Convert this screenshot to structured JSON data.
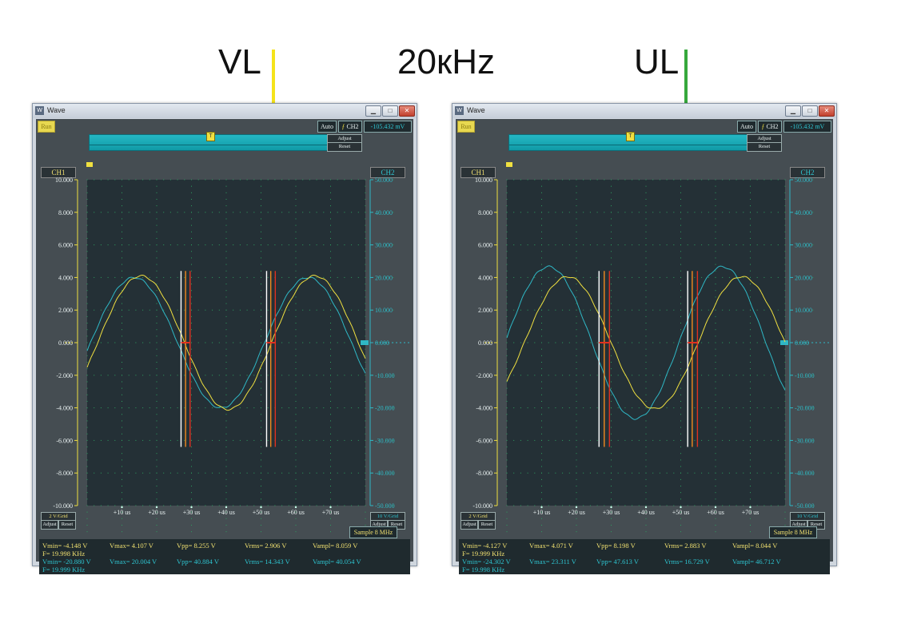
{
  "labels": {
    "vl": "VL",
    "freq": "20кHz",
    "ul": "UL"
  },
  "colors": {
    "ch1": "#f0e040",
    "ch2": "#2fb8c6",
    "plot_bg": "#243036",
    "panel": "#454d52",
    "cursor_white": "#ffffff",
    "cursor_red": "#e03020",
    "cursor_orange": "#f08a20",
    "vl_marker": "#f5e31a",
    "ul_marker": "#36a83c"
  },
  "common": {
    "window_title": "Wave",
    "run_button": "Run",
    "auto_button": "Auto",
    "trigger_channel": "CH2",
    "trigger_edge_icon": "rising-edge-icon",
    "trigger_level": "-105.432 mV",
    "adjust": "Adjust",
    "reset": "Reset",
    "ch1_label": "CH1",
    "ch2_label": "CH2",
    "ch1_scale": "2 V/Grid",
    "ch2_scale": "10 V/Grid",
    "sample": "Sample 8 MHz",
    "ch1_ticks": [
      "10.000",
      "8.000",
      "6.000",
      "4.000",
      "2.000",
      "0.000",
      "-2.000",
      "-4.000",
      "-6.000",
      "-8.000",
      "-10.000"
    ],
    "ch2_ticks": [
      "50.000",
      "40.000",
      "30.000",
      "20.000",
      "10.000",
      "0.000",
      "-10.000",
      "-20.000",
      "-30.000",
      "-40.000",
      "-50.000"
    ],
    "time_ticks": [
      "+10 us",
      "+20 us",
      "+30 us",
      "+40 us",
      "+50 us",
      "+60 us",
      "+70 us"
    ]
  },
  "scopes": [
    {
      "ch1_wave": {
        "amplitude_v": 4.1,
        "peak_time_us": 15.5,
        "period_us": 50
      },
      "ch2_wave": {
        "amplitude_v": 20.0,
        "peak_time_us": 13.5,
        "period_us": 50
      },
      "cursors_us": [
        {
          "color": "white",
          "t": 27
        },
        {
          "color": "orange",
          "t": 28.3
        },
        {
          "color": "red",
          "t": 29.6
        },
        {
          "color": "white",
          "t": 51.6
        },
        {
          "color": "orange",
          "t": 52.8
        },
        {
          "color": "red",
          "t": 54.1
        }
      ],
      "ch1_readout": {
        "vmin": "Vmin= -4.148 V",
        "f": "F= 19.998 KHz",
        "vmax": "Vmax= 4.107 V",
        "vpp": "Vpp= 8.255 V",
        "vrms": "Vrms= 2.906 V",
        "vampl": "Vampl= 8.059 V"
      },
      "ch2_readout": {
        "vmin": "Vmin= -20.880 V",
        "f": "F= 19.999 KHz",
        "vmax": "Vmax= 20.004 V",
        "vpp": "Vpp= 40.884 V",
        "vrms": "Vrms= 14.343 V",
        "vampl": "Vampl= 40.054 V"
      }
    },
    {
      "ch1_wave": {
        "amplitude_v": 4.05,
        "peak_time_us": 17.5,
        "period_us": 50
      },
      "ch2_wave": {
        "amplitude_v": 23.3,
        "peak_time_us": 12.0,
        "period_us": 50
      },
      "cursors_us": [
        {
          "color": "white",
          "t": 26.5
        },
        {
          "color": "orange",
          "t": 28.0
        },
        {
          "color": "red",
          "t": 29.5
        },
        {
          "color": "white",
          "t": 52.0
        },
        {
          "color": "orange",
          "t": 53.3
        },
        {
          "color": "red",
          "t": 54.8
        }
      ],
      "ch1_readout": {
        "vmin": "Vmin= -4.127 V",
        "f": "F= 19.999 KHz",
        "vmax": "Vmax= 4.071 V",
        "vpp": "Vpp= 8.198 V",
        "vrms": "Vrms= 2.883 V",
        "vampl": "Vampl= 8.044 V"
      },
      "ch2_readout": {
        "vmin": "Vmin= -24.302 V",
        "f": "F= 19.998 KHz",
        "vmax": "Vmax= 23.311 V",
        "vpp": "Vpp= 47.613 V",
        "vrms": "Vrms= 16.729 V",
        "vampl": "Vampl= 46.712 V"
      }
    }
  ]
}
